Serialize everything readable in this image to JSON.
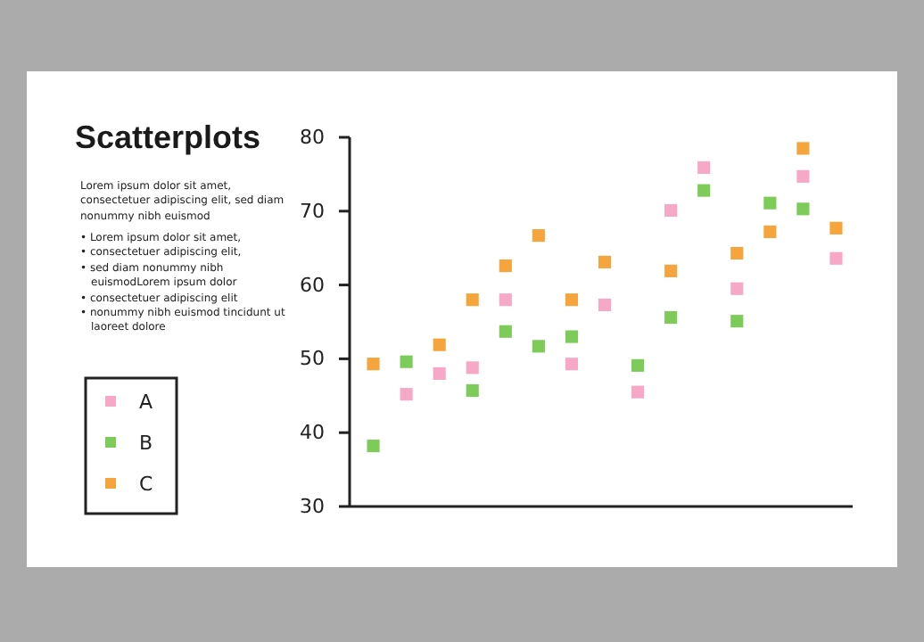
{
  "chart_data": {
    "type": "scatter",
    "title": "Scatterplots",
    "annotations": [
      "Lorem ipsum dolor sit amet, consectetuer adipiscing elit, sed diam nonummy nibh euismod",
      "• Lorem ipsum dolor sit amet,",
      "• consectetuer adipiscing elit,",
      "• sed diam nonummy nibh euismodLorem ipsum dolor",
      "• consectetuer adipiscing elit",
      "• nonummy nibh euismod tincidunt ut laoreet dolore"
    ],
    "categories": [
      null,
      null,
      null,
      null,
      null,
      null,
      null,
      null,
      null,
      null,
      null,
      null,
      null,
      null,
      null
    ],
    "series": [
      {
        "name": "A",
        "color": "#f7a8c6",
        "values": [
          null,
          45.2,
          48,
          48.8,
          58,
          null,
          49.3,
          57.3,
          45.5,
          70.1,
          75.9,
          59.5,
          null,
          74.7,
          63.6
        ]
      },
      {
        "name": "B",
        "color": "#7dcc5a",
        "values": [
          38.2,
          49.6,
          null,
          45.7,
          53.7,
          51.7,
          53,
          null,
          49.1,
          55.6,
          72.8,
          55.1,
          71.1,
          70.3,
          null
        ]
      },
      {
        "name": "C",
        "color": "#f5a53c",
        "values": [
          49.3,
          null,
          51.9,
          58,
          62.6,
          66.7,
          58,
          63.1,
          null,
          61.9,
          null,
          64.3,
          67.2,
          78.5,
          67.7
        ]
      }
    ],
    "ylim": [
      30,
      80
    ],
    "yticks": [
      30,
      40,
      50,
      60,
      70,
      80
    ],
    "marker": "square",
    "legend": "left"
  }
}
